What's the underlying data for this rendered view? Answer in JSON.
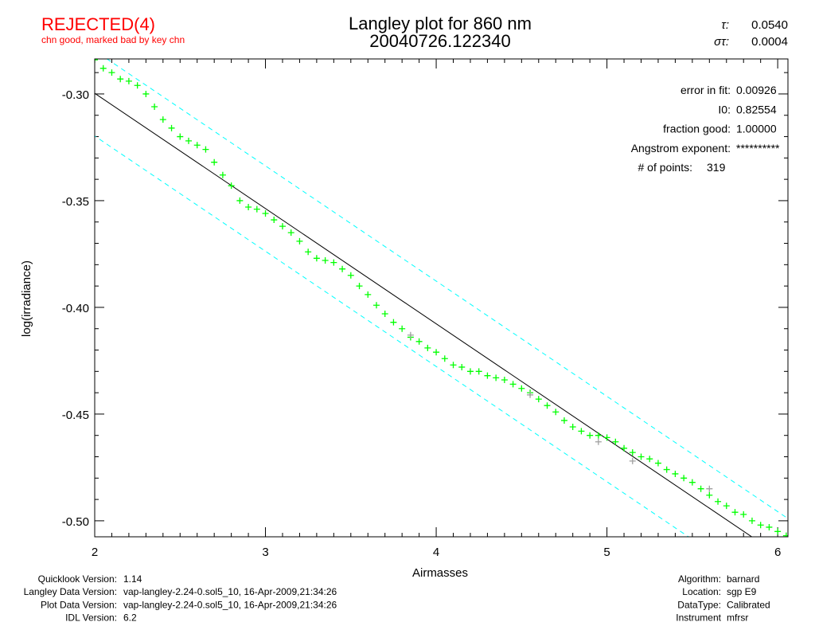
{
  "header": {
    "status": "REJECTED(4)",
    "status_note": "chn good, marked bad by key chn",
    "title": "Langley plot for 860 nm",
    "subtitle": "20040726.122340",
    "tau_label": "τ:",
    "tau_value": "0.0540",
    "sigma_label": "στ:",
    "sigma_value": "0.0004",
    "status_color": "#ff0000"
  },
  "stats": [
    {
      "label": "error in fit:",
      "value": "0.00926"
    },
    {
      "label": "I0:",
      "value": "0.82554"
    },
    {
      "label": "fraction good:",
      "value": "1.00000"
    },
    {
      "label": "Angstrom exponent:",
      "value": "**********"
    },
    {
      "label": "# of points:",
      "value": "319"
    }
  ],
  "footer_left": [
    {
      "label": "Quicklook Version:",
      "value": "1.14"
    },
    {
      "label": "Langley Data Version:",
      "value": "vap-langley-2.24-0.sol5_10, 16-Apr-2009,21:34:26"
    },
    {
      "label": "Plot Data Version:",
      "value": "vap-langley-2.24-0.sol5_10, 16-Apr-2009,21:34:26"
    },
    {
      "label": "IDL Version:",
      "value": "6.2"
    }
  ],
  "footer_right": [
    {
      "label": "Algorithm:",
      "value": "barnard"
    },
    {
      "label": "Location:",
      "value": "sgp E9"
    },
    {
      "label": "DataType:",
      "value": "Calibrated"
    },
    {
      "label": "Instrument",
      "value": "mfrsr"
    }
  ],
  "chart_data": {
    "type": "scatter",
    "xlabel": "Airmasses",
    "ylabel": "log(irradiance)",
    "xlim": [
      2,
      6.06
    ],
    "ylim": [
      -0.5075,
      -0.2836
    ],
    "x_ticks": [
      "2",
      "3",
      "4",
      "5",
      "6"
    ],
    "y_ticks": [
      "-0.30",
      "-0.35",
      "-0.40",
      "-0.45",
      "-0.50"
    ],
    "grid": false,
    "colors": {
      "good": "#00ff00",
      "marked": "#a0a0a0",
      "fit": "#000000",
      "band": "#00ffff"
    },
    "fit": {
      "intercept_ln_I0": -0.1917,
      "slope": -0.054
    },
    "band_offset": 0.02,
    "points": [
      [
        2.0,
        -0.284
      ],
      [
        2.05,
        -0.288
      ],
      [
        2.1,
        -0.29
      ],
      [
        2.15,
        -0.293
      ],
      [
        2.2,
        -0.294
      ],
      [
        2.25,
        -0.296
      ],
      [
        2.3,
        -0.3
      ],
      [
        2.35,
        -0.306
      ],
      [
        2.4,
        -0.312
      ],
      [
        2.45,
        -0.316
      ],
      [
        2.5,
        -0.32
      ],
      [
        2.55,
        -0.322
      ],
      [
        2.6,
        -0.324
      ],
      [
        2.65,
        -0.326
      ],
      [
        2.7,
        -0.332
      ],
      [
        2.75,
        -0.338
      ],
      [
        2.8,
        -0.343
      ],
      [
        2.85,
        -0.35
      ],
      [
        2.9,
        -0.353
      ],
      [
        2.95,
        -0.354
      ],
      [
        3.0,
        -0.356
      ],
      [
        3.05,
        -0.359
      ],
      [
        3.1,
        -0.362
      ],
      [
        3.15,
        -0.365
      ],
      [
        3.2,
        -0.369
      ],
      [
        3.25,
        -0.374
      ],
      [
        3.3,
        -0.377
      ],
      [
        3.35,
        -0.378
      ],
      [
        3.4,
        -0.379
      ],
      [
        3.45,
        -0.382
      ],
      [
        3.5,
        -0.385
      ],
      [
        3.55,
        -0.39
      ],
      [
        3.6,
        -0.394
      ],
      [
        3.65,
        -0.399
      ],
      [
        3.7,
        -0.403
      ],
      [
        3.75,
        -0.407
      ],
      [
        3.8,
        -0.41
      ],
      [
        3.85,
        -0.414
      ],
      [
        3.9,
        -0.416
      ],
      [
        3.95,
        -0.419
      ],
      [
        4.0,
        -0.421
      ],
      [
        4.05,
        -0.424
      ],
      [
        4.1,
        -0.427
      ],
      [
        4.15,
        -0.428
      ],
      [
        4.2,
        -0.43
      ],
      [
        4.25,
        -0.43
      ],
      [
        4.3,
        -0.432
      ],
      [
        4.35,
        -0.433
      ],
      [
        4.4,
        -0.434
      ],
      [
        4.45,
        -0.436
      ],
      [
        4.5,
        -0.438
      ],
      [
        4.55,
        -0.44
      ],
      [
        4.6,
        -0.443
      ],
      [
        4.65,
        -0.446
      ],
      [
        4.7,
        -0.449
      ],
      [
        4.75,
        -0.453
      ],
      [
        4.8,
        -0.456
      ],
      [
        4.85,
        -0.458
      ],
      [
        4.9,
        -0.46
      ],
      [
        4.95,
        -0.46
      ],
      [
        5.0,
        -0.461
      ],
      [
        5.05,
        -0.463
      ],
      [
        5.1,
        -0.466
      ],
      [
        5.15,
        -0.468
      ],
      [
        5.2,
        -0.47
      ],
      [
        5.25,
        -0.471
      ],
      [
        5.3,
        -0.473
      ],
      [
        5.35,
        -0.476
      ],
      [
        5.4,
        -0.478
      ],
      [
        5.45,
        -0.48
      ],
      [
        5.5,
        -0.482
      ],
      [
        5.55,
        -0.485
      ],
      [
        5.6,
        -0.488
      ],
      [
        5.65,
        -0.491
      ],
      [
        5.7,
        -0.493
      ],
      [
        5.75,
        -0.496
      ],
      [
        5.8,
        -0.497
      ],
      [
        5.85,
        -0.5
      ],
      [
        5.9,
        -0.502
      ],
      [
        5.95,
        -0.503
      ],
      [
        6.0,
        -0.505
      ],
      [
        6.05,
        -0.507
      ]
    ],
    "marked_points": [
      [
        3.85,
        -0.413
      ],
      [
        4.55,
        -0.441
      ],
      [
        4.95,
        -0.463
      ],
      [
        5.15,
        -0.472
      ],
      [
        5.6,
        -0.485
      ]
    ]
  }
}
